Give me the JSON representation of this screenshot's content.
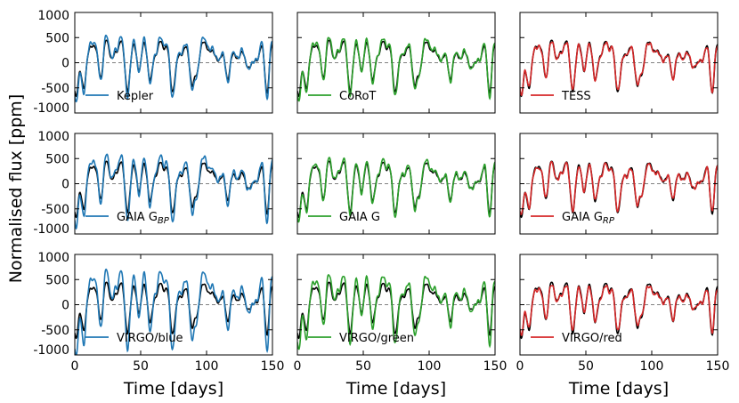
{
  "figure": {
    "ylabel": "Normalised flux [ppm]",
    "xlabel": "Time [days]"
  },
  "chart_data": {
    "type": "line",
    "xlim": [
      0,
      150
    ],
    "ylim": [
      -1000,
      1000
    ],
    "xticks": [
      0,
      50,
      100,
      150
    ],
    "yticks": [
      1000,
      500,
      0,
      -500,
      -1000
    ],
    "reference_series": {
      "name": "reference",
      "color": "#000000"
    },
    "peaks": [
      [
        12,
        330,
        2.2
      ],
      [
        16,
        200,
        1.8
      ],
      [
        24,
        460,
        2.2
      ],
      [
        30,
        250,
        1.6
      ],
      [
        35,
        440,
        2.0
      ],
      [
        45,
        360,
        2.0
      ],
      [
        53,
        440,
        2.5
      ],
      [
        60,
        160,
        1.6
      ],
      [
        65,
        400,
        2.0
      ],
      [
        70,
        330,
        1.8
      ],
      [
        79,
        110,
        1.5
      ],
      [
        84,
        320,
        2.2
      ],
      [
        97,
        430,
        3.0
      ],
      [
        104,
        230,
        2.0
      ],
      [
        112,
        160,
        2.0
      ],
      [
        120,
        160,
        2.5
      ],
      [
        127,
        200,
        2.0
      ],
      [
        137,
        100,
        2.0
      ],
      [
        142,
        320,
        1.5
      ],
      [
        150,
        380,
        2.0
      ]
    ],
    "dips": [
      [
        1,
        -700,
        1.5
      ],
      [
        7,
        -530,
        1.5
      ],
      [
        20,
        -380,
        1.5
      ],
      [
        29,
        -160,
        1.5
      ],
      [
        40,
        -570,
        1.6
      ],
      [
        49,
        -330,
        1.5
      ],
      [
        57,
        -520,
        1.7
      ],
      [
        74,
        -590,
        1.7
      ],
      [
        89,
        -450,
        1.6
      ],
      [
        93,
        -380,
        1.5
      ],
      [
        116,
        -380,
        1.5
      ],
      [
        133,
        -100,
        3.0
      ],
      [
        146,
        -650,
        1.4
      ]
    ],
    "panels": [
      {
        "label": "Kepler",
        "color": "#1f77b4",
        "amp": 1.2,
        "show_ylabels": true,
        "show_xlabels": false
      },
      {
        "label": "CoRoT",
        "color": "#2ca02c",
        "amp": 1.15,
        "show_ylabels": false,
        "show_xlabels": false
      },
      {
        "label": "TESS",
        "color": "#d62728",
        "amp": 0.95,
        "show_ylabels": false,
        "show_xlabels": false
      },
      {
        "label": "GAIA G",
        "sub": "BP",
        "color": "#1f77b4",
        "amp": 1.3,
        "show_ylabels": true,
        "show_xlabels": false
      },
      {
        "label": "GAIA G",
        "color": "#2ca02c",
        "amp": 1.12,
        "show_ylabels": false,
        "show_xlabels": false
      },
      {
        "label": "GAIA G",
        "sub": "RP",
        "color": "#d62728",
        "amp": 0.93,
        "show_ylabels": false,
        "show_xlabels": false
      },
      {
        "label": "VIRGO/blue",
        "color": "#1f77b4",
        "amp": 1.55,
        "show_ylabels": true,
        "show_xlabels": true
      },
      {
        "label": "VIRGO/green",
        "color": "#2ca02c",
        "amp": 1.35,
        "show_ylabels": false,
        "show_xlabels": true
      },
      {
        "label": "VIRGO/red",
        "color": "#d62728",
        "amp": 0.9,
        "show_ylabels": false,
        "show_xlabels": true
      }
    ]
  }
}
